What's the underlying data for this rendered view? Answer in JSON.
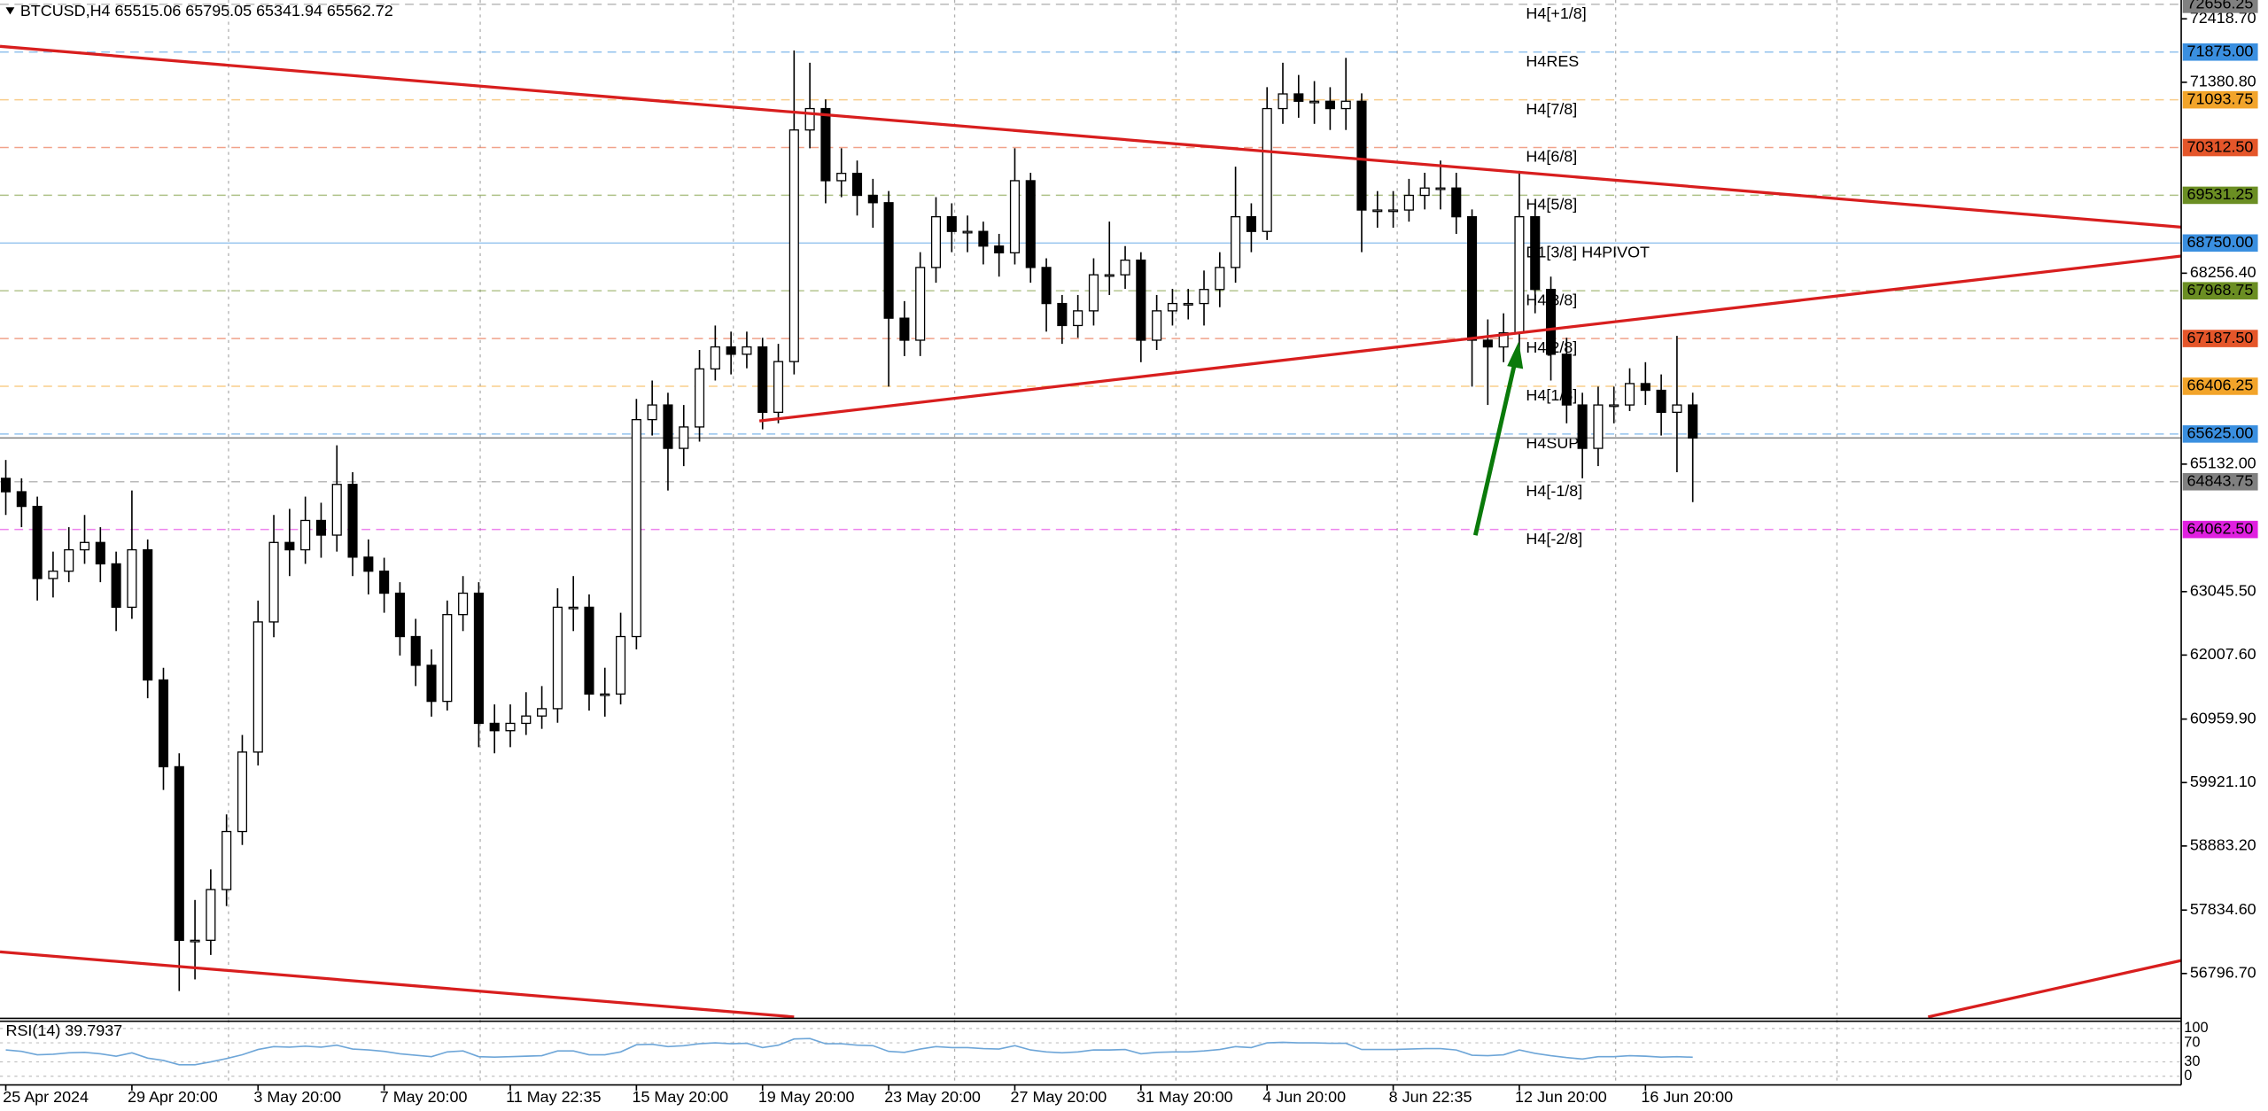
{
  "chart_data": {
    "type": "candlestick",
    "title": "BTCUSD,H4 65515.06 65795.05 65341.94 65562.72",
    "categories": [
      "25 Apr 2024",
      null,
      null,
      null,
      null,
      null,
      null,
      null,
      "29 Apr 20:00",
      null,
      null,
      null,
      null,
      null,
      null,
      null,
      "3 May 20:00",
      null,
      null,
      null,
      null,
      null,
      null,
      null,
      "7 May 20:00",
      null,
      null,
      null,
      null,
      null,
      null,
      null,
      "11 May 22:35",
      null,
      null,
      null,
      null,
      null,
      null,
      null,
      "15 May 20:00",
      null,
      null,
      null,
      null,
      null,
      null,
      null,
      "19 May 20:00",
      null,
      null,
      null,
      null,
      null,
      null,
      null,
      "23 May 20:00",
      null,
      null,
      null,
      null,
      null,
      null,
      null,
      "27 May 20:00",
      null,
      null,
      null,
      null,
      null,
      null,
      null,
      "31 May 20:00",
      null,
      null,
      null,
      null,
      null,
      null,
      null,
      "4 Jun 20:00",
      null,
      null,
      null,
      null,
      null,
      null,
      null,
      "8 Jun 22:35",
      null,
      null,
      null,
      null,
      null,
      null,
      null,
      "12 Jun 20:00",
      null,
      null,
      null,
      null,
      null,
      null,
      null,
      "16 Jun 20:00",
      null,
      null,
      null
    ],
    "open": [
      64900,
      64680,
      64440,
      63260,
      63380,
      63730,
      63850,
      63500,
      62790,
      63730,
      61600,
      60180,
      57340,
      57340,
      58170,
      59120,
      60420,
      62550,
      63850,
      63730,
      64210,
      63970,
      64800,
      63610,
      63380,
      63020,
      62310,
      61840,
      61250,
      62670,
      63020,
      60890,
      60770,
      60890,
      61010,
      61130,
      62790,
      62790,
      61370,
      61370,
      62310,
      65860,
      66100,
      65390,
      65740,
      66690,
      67050,
      66930,
      67050,
      65980,
      66810,
      70600,
      70950,
      69770,
      69890,
      69530,
      69410,
      67520,
      67160,
      68350,
      69180,
      68940,
      68940,
      68700,
      68590,
      69770,
      68350,
      67760,
      67400,
      67640,
      68230,
      68230,
      68470,
      67160,
      67640,
      67760,
      67760,
      67990,
      68350,
      69180,
      68940,
      70950,
      71190,
      71070,
      71070,
      70950,
      71070,
      69290,
      69290,
      69290,
      69530,
      69650,
      69650,
      69180,
      67160,
      67050,
      67280,
      69180,
      67990,
      66930,
      66100,
      65390,
      66100,
      66100,
      66450,
      66340,
      65980,
      66100
    ],
    "high": [
      65200,
      64900,
      64600,
      63700,
      64100,
      64300,
      64100,
      63700,
      64700,
      63900,
      61800,
      60400,
      58000,
      58500,
      59400,
      60700,
      62900,
      64300,
      64400,
      64600,
      64500,
      65440,
      65000,
      63900,
      63600,
      63200,
      62600,
      62100,
      62900,
      63300,
      63200,
      61200,
      61200,
      61400,
      61500,
      63100,
      63300,
      63000,
      61800,
      62700,
      66200,
      66500,
      66300,
      66100,
      67000,
      67400,
      67300,
      67300,
      67200,
      67100,
      71900,
      71700,
      71100,
      70300,
      70100,
      69800,
      69600,
      67800,
      68600,
      69500,
      69400,
      69200,
      69100,
      68900,
      70300,
      69900,
      68500,
      67900,
      67900,
      68500,
      69100,
      68700,
      68600,
      67900,
      68000,
      68000,
      68300,
      68600,
      70000,
      69400,
      71300,
      71700,
      71500,
      71400,
      71300,
      71780,
      71200,
      69600,
      69600,
      69800,
      69900,
      70100,
      69900,
      69300,
      67500,
      67600,
      69930,
      69400,
      68200,
      67200,
      66300,
      66400,
      66400,
      66700,
      66800,
      66600,
      67230,
      66300
    ],
    "low": [
      64300,
      64100,
      62900,
      62950,
      63200,
      63500,
      63200,
      62400,
      62600,
      61300,
      59800,
      56510,
      56700,
      57100,
      57900,
      58900,
      60200,
      62300,
      63300,
      63500,
      63600,
      63700,
      63300,
      63000,
      62700,
      62000,
      61500,
      61000,
      61100,
      62400,
      60500,
      60400,
      60500,
      60700,
      60800,
      60900,
      62400,
      61100,
      61000,
      61200,
      62100,
      65600,
      64700,
      65100,
      65500,
      66500,
      66600,
      66700,
      65700,
      65800,
      66600,
      70300,
      69400,
      69500,
      69200,
      69000,
      66400,
      66900,
      66900,
      68100,
      68600,
      68600,
      68400,
      68200,
      68400,
      68100,
      67300,
      67100,
      67200,
      67400,
      67900,
      68000,
      66800,
      67000,
      67400,
      67500,
      67400,
      67700,
      68100,
      68600,
      68800,
      70700,
      70800,
      70700,
      70600,
      70600,
      68600,
      69000,
      69000,
      69100,
      69300,
      69300,
      68900,
      66400,
      66100,
      66800,
      67000,
      67600,
      66500,
      65800,
      64900,
      65100,
      65800,
      66000,
      66100,
      65600,
      65000,
      64510
    ],
    "close": [
      64680,
      64440,
      63260,
      63380,
      63730,
      63850,
      63500,
      62790,
      63730,
      61600,
      60180,
      57340,
      57340,
      58170,
      59120,
      60420,
      62550,
      63850,
      63730,
      64210,
      63970,
      64800,
      63610,
      63380,
      63020,
      62310,
      61840,
      61250,
      62670,
      63020,
      60890,
      60770,
      60890,
      61010,
      61130,
      62790,
      62790,
      61370,
      61370,
      62310,
      65860,
      66100,
      65390,
      65740,
      66690,
      67050,
      66930,
      67050,
      65980,
      66810,
      70600,
      70950,
      69770,
      69890,
      69530,
      69410,
      67520,
      67160,
      68350,
      69180,
      68940,
      68940,
      68700,
      68590,
      69770,
      68350,
      67760,
      67400,
      67640,
      68230,
      68230,
      68470,
      67160,
      67640,
      67760,
      67760,
      67990,
      68350,
      69180,
      68940,
      70950,
      71190,
      71070,
      71070,
      70950,
      71070,
      69290,
      69290,
      69290,
      69530,
      69650,
      69650,
      69180,
      67160,
      67050,
      67280,
      69180,
      67990,
      66930,
      66100,
      65390,
      66100,
      66100,
      66450,
      66340,
      65980,
      66100,
      65560
    ],
    "ylim": [
      56086,
      72726
    ],
    "yticks": [
      {
        "value": 72418.7,
        "label": "72418.70"
      },
      {
        "value": 71380.8,
        "label": "71380.80"
      },
      {
        "value": 68256.4,
        "label": "68256.40"
      },
      {
        "value": 65132,
        "label": "65132.00"
      },
      {
        "value": 63045.5,
        "label": "63045.50"
      },
      {
        "value": 62007.6,
        "label": "62007.60"
      },
      {
        "value": 60959.9,
        "label": "60959.90"
      },
      {
        "value": 59921.1,
        "label": "59921.10"
      },
      {
        "value": 58883.2,
        "label": "58883.20"
      },
      {
        "value": 57834.6,
        "label": "57834.60"
      },
      {
        "value": 56796.7,
        "label": "56796.70"
      }
    ],
    "levels": [
      {
        "label": "H4[+1/8]",
        "value": 72656.25,
        "color": "#808080"
      },
      {
        "label": "H4RES",
        "value": 71875,
        "value_label": "71875.00",
        "color": "#3a8fe0"
      },
      {
        "label": "H4[7/8]",
        "value": 71093.75,
        "color": "#f2a42a"
      },
      {
        "label": "H4[6/8]",
        "value": 70312.5,
        "value_label": "70312.50",
        "color": "#e5562a"
      },
      {
        "label": "H4[5/8]",
        "value": 69531.25,
        "color": "#6b8e23"
      },
      {
        "label": "D1[3/8] H4PIVOT",
        "value": 68750,
        "value_label": "68750.00",
        "color": "#3a8fe0",
        "line_style": "solid"
      },
      {
        "label": "H4[3/8]",
        "value": 67968.75,
        "color": "#6b8e23"
      },
      {
        "label": "H4[2/8]",
        "value": 67187.5,
        "value_label": "67187.50",
        "color": "#e5562a"
      },
      {
        "label": "H4[1/8]",
        "value": 66406.25,
        "color": "#f2a42a"
      },
      {
        "label": "H4SUP",
        "value": 65625,
        "value_label": "65625.00",
        "color": "#3a8fe0"
      },
      {
        "label": "H4[-1/8]",
        "value": 64843.75,
        "color": "#808080"
      },
      {
        "label": "H4[-2/8]",
        "value": 64062.5,
        "value_label": "64062.50",
        "color": "#e020e0"
      }
    ],
    "indicator": {
      "name": "RSI(14)",
      "color": "#6ea6d8",
      "ylim": [
        0,
        100
      ],
      "yticks": [
        100,
        70,
        30,
        0
      ],
      "values": [
        55,
        52,
        45,
        46,
        49,
        50,
        47,
        42,
        49,
        38,
        33,
        24,
        24,
        30,
        37,
        45,
        56,
        62,
        61,
        63,
        61,
        65,
        57,
        55,
        52,
        47,
        44,
        41,
        51,
        53,
        41,
        40,
        41,
        42,
        43,
        53,
        53,
        45,
        45,
        51,
        66,
        67,
        62,
        64,
        68,
        70,
        68,
        69,
        60,
        65,
        78,
        79,
        68,
        68,
        65,
        64,
        52,
        50,
        57,
        62,
        60,
        60,
        58,
        57,
        64,
        55,
        51,
        49,
        51,
        55,
        55,
        56,
        47,
        50,
        51,
        51,
        53,
        56,
        62,
        60,
        70,
        71,
        70,
        70,
        69,
        69,
        56,
        56,
        56,
        57,
        58,
        58,
        55,
        44,
        43,
        45,
        55,
        48,
        43,
        39,
        36,
        41,
        41,
        43,
        42,
        40,
        41,
        39.7937
      ]
    }
  }
}
